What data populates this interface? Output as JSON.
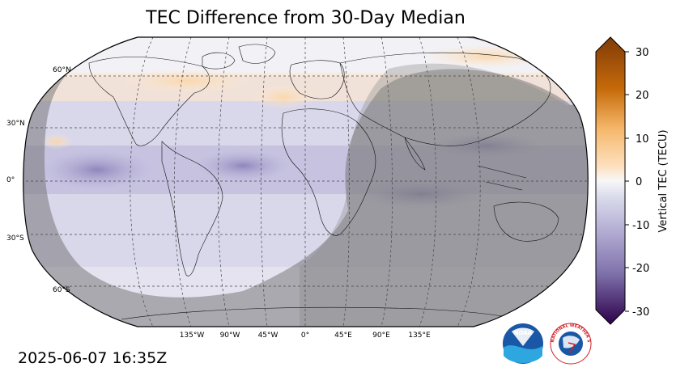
{
  "title": "TEC Difference from 30-Day Median",
  "timestamp": "2025-06-07 16:35Z",
  "map": {
    "projection": "robinson",
    "lat_labels": [
      "60°N",
      "30°N",
      "0°",
      "30°S",
      "60°S"
    ],
    "lon_labels": [
      "135°W",
      "90°W",
      "45°W",
      "0°",
      "45°E",
      "90°E",
      "135°E"
    ],
    "night_shading": true
  },
  "colorbar": {
    "label": "Vertical TEC (TECU)",
    "ticks": [
      "30",
      "20",
      "10",
      "0",
      "-10",
      "-20",
      "-30"
    ],
    "range": [
      -30,
      30
    ],
    "colors": {
      "high": "#7f3b08",
      "mid_high": "#f1a340",
      "zero": "#f7f7f7",
      "mid_low": "#998ec3",
      "low": "#2d004b"
    }
  },
  "logos": {
    "noaa": "NOAA",
    "nws": "NATIONAL WEATHER SERVICE"
  }
}
